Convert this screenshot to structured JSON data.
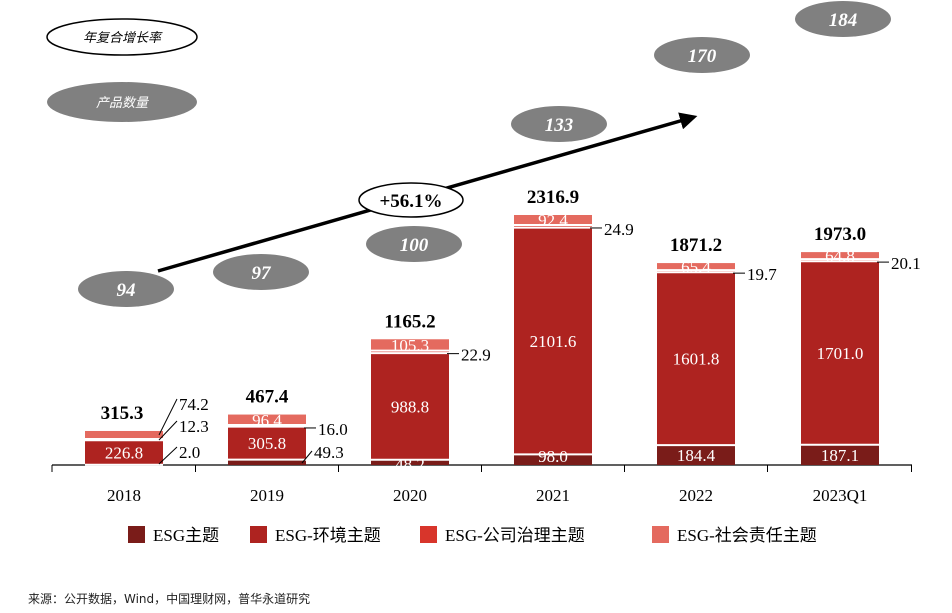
{
  "colors": {
    "esg": "#7a1c19",
    "env": "#ae2320",
    "gov": "#d8352b",
    "soc": "#e46a5f",
    "oval_fill": "#808080",
    "oval_text": "#ffffff",
    "text": "#000000"
  },
  "annotations": {
    "cagr_legend": "年复合增长率",
    "count_legend": "产品数量",
    "cagr_value": "+56.1%"
  },
  "source_note": "来源：公开数据，Wind，中国理财网，普华永道研究",
  "chart_data": {
    "type": "bar",
    "stacked": true,
    "title": "",
    "xlabel": "",
    "ylabel": "",
    "ylim": [
      0,
      2400
    ],
    "categories": [
      "2018",
      "2019",
      "2020",
      "2021",
      "2022",
      "2023Q1"
    ],
    "series": [
      {
        "name": "ESG主题",
        "color_key": "esg",
        "values": [
          2.0,
          49.3,
          48.2,
          98.0,
          184.4,
          187.1
        ]
      },
      {
        "name": "ESG-环境主题",
        "color_key": "env",
        "values": [
          226.8,
          305.8,
          988.8,
          2101.6,
          1601.8,
          1701.0
        ]
      },
      {
        "name": "ESG-公司治理主题",
        "color_key": "gov",
        "values": [
          12.3,
          16.0,
          22.9,
          24.9,
          19.7,
          20.1
        ]
      },
      {
        "name": "ESG-社会责任主题",
        "color_key": "soc",
        "values": [
          74.2,
          96.4,
          105.3,
          92.4,
          65.4,
          64.8
        ]
      }
    ],
    "totals": [
      315.3,
      467.4,
      1165.2,
      2316.9,
      1871.2,
      1973.0
    ],
    "product_counts": [
      94,
      97,
      100,
      133,
      170,
      184
    ],
    "legend_position": "bottom"
  }
}
